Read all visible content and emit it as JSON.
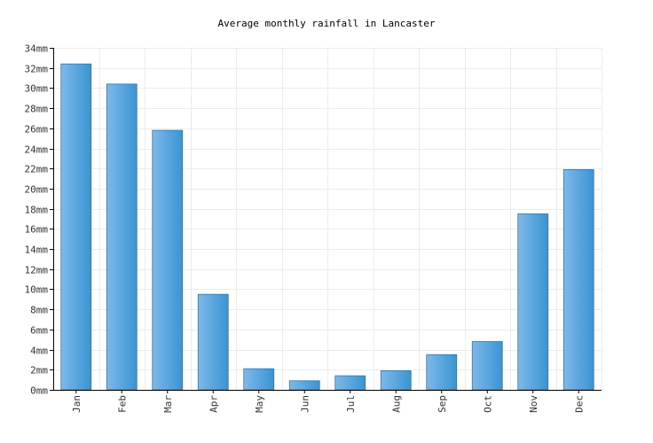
{
  "chart_data": {
    "type": "bar",
    "title": "Average monthly rainfall in Lancaster",
    "xlabel": "",
    "ylabel": "",
    "categories": [
      "Jan",
      "Feb",
      "Mar",
      "Apr",
      "May",
      "Jun",
      "Jul",
      "Aug",
      "Sep",
      "Oct",
      "Nov",
      "Dec"
    ],
    "values": [
      32.4,
      30.4,
      25.8,
      9.5,
      2.1,
      0.9,
      1.4,
      1.9,
      3.5,
      4.8,
      17.5,
      21.9
    ],
    "ylim": [
      0,
      34
    ],
    "y_ticks": [
      "0mm",
      "2mm",
      "4mm",
      "6mm",
      "8mm",
      "10mm",
      "12mm",
      "14mm",
      "16mm",
      "18mm",
      "20mm",
      "22mm",
      "24mm",
      "26mm",
      "28mm",
      "30mm",
      "32mm",
      "34mm"
    ],
    "y_tick_values": [
      0,
      2,
      4,
      6,
      8,
      10,
      12,
      14,
      16,
      18,
      20,
      22,
      24,
      26,
      28,
      30,
      32,
      34
    ],
    "grid": true,
    "colors": {
      "bar_light": "#7db9ea",
      "bar_dark": "#3a94d3",
      "bar_edge": "#4a6f8f"
    }
  }
}
